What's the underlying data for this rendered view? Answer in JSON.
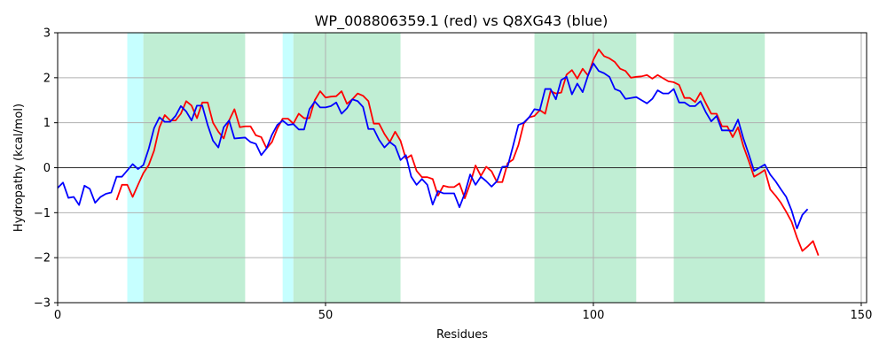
{
  "chart_data": {
    "type": "line",
    "title": "WP_008806359.1 (red) vs Q8XG43 (blue)",
    "xlabel": "Residues",
    "ylabel": "Hydropathy (kcal/mol)",
    "xlim": [
      0,
      151
    ],
    "ylim": [
      -3,
      3
    ],
    "xticks": [
      0,
      50,
      100,
      150
    ],
    "yticks": [
      -3,
      -2,
      -1,
      0,
      1,
      2,
      3
    ],
    "grid": true,
    "zero_line": true,
    "regions": [
      {
        "start": 13,
        "end": 16,
        "color": "#c6ffff"
      },
      {
        "start": 16,
        "end": 35,
        "color": "#c0eed4"
      },
      {
        "start": 42,
        "end": 44,
        "color": "#c6ffff"
      },
      {
        "start": 44,
        "end": 64,
        "color": "#c0eed4"
      },
      {
        "start": 89,
        "end": 108,
        "color": "#c0eed4"
      },
      {
        "start": 115,
        "end": 132,
        "color": "#c0eed4"
      }
    ],
    "series": [
      {
        "color": "#ff0000",
        "x_start": 11,
        "values": [
          -0.72,
          -0.38,
          -0.38,
          -0.65,
          -0.38,
          -0.12,
          0.06,
          0.38,
          0.9,
          1.17,
          1.05,
          1.05,
          1.2,
          1.48,
          1.38,
          1.1,
          1.45,
          1.45,
          1.0,
          0.8,
          0.65,
          1.05,
          1.3,
          0.9,
          0.92,
          0.92,
          0.72,
          0.68,
          0.43,
          0.57,
          0.87,
          1.09,
          1.09,
          0.98,
          1.2,
          1.1,
          1.1,
          1.5,
          1.7,
          1.56,
          1.58,
          1.59,
          1.7,
          1.42,
          1.52,
          1.65,
          1.6,
          1.48,
          0.98,
          0.98,
          0.75,
          0.57,
          0.8,
          0.6,
          0.2,
          0.28,
          -0.07,
          -0.21,
          -0.21,
          -0.25,
          -0.62,
          -0.4,
          -0.43,
          -0.43,
          -0.35,
          -0.68,
          -0.35,
          0.05,
          -0.18,
          0.02,
          -0.08,
          -0.32,
          -0.32,
          0.1,
          0.18,
          0.5,
          0.98,
          1.12,
          1.15,
          1.28,
          1.2,
          1.7,
          1.65,
          1.67,
          2.07,
          2.17,
          1.98,
          2.2,
          2.05,
          2.4,
          2.63,
          2.48,
          2.43,
          2.35,
          2.2,
          2.15,
          2.0,
          2.02,
          2.03,
          2.06,
          1.98,
          2.06,
          1.99,
          1.92,
          1.9,
          1.84,
          1.55,
          1.55,
          1.46,
          1.67,
          1.43,
          1.2,
          1.2,
          0.92,
          0.92,
          0.68,
          0.9,
          0.48,
          0.15,
          -0.2,
          -0.13,
          -0.05,
          -0.48,
          -0.62,
          -0.78,
          -0.98,
          -1.2,
          -1.55,
          -1.85,
          -1.75,
          -1.63,
          -1.95
        ]
      },
      {
        "color": "#0000ff",
        "x_start": 0,
        "values": [
          -0.45,
          -0.33,
          -0.67,
          -0.65,
          -0.83,
          -0.4,
          -0.47,
          -0.78,
          -0.65,
          -0.58,
          -0.55,
          -0.2,
          -0.2,
          -0.06,
          0.08,
          -0.03,
          0.06,
          0.42,
          0.88,
          1.12,
          1.02,
          1.02,
          1.15,
          1.37,
          1.25,
          1.05,
          1.38,
          1.38,
          0.95,
          0.6,
          0.45,
          0.9,
          1.05,
          0.65,
          0.66,
          0.67,
          0.57,
          0.53,
          0.28,
          0.43,
          0.73,
          0.95,
          1.05,
          0.95,
          0.97,
          0.85,
          0.85,
          1.3,
          1.47,
          1.34,
          1.34,
          1.37,
          1.45,
          1.2,
          1.32,
          1.52,
          1.48,
          1.35,
          0.86,
          0.86,
          0.62,
          0.45,
          0.57,
          0.48,
          0.17,
          0.28,
          -0.2,
          -0.38,
          -0.25,
          -0.38,
          -0.82,
          -0.52,
          -0.57,
          -0.57,
          -0.57,
          -0.88,
          -0.57,
          -0.15,
          -0.38,
          -0.2,
          -0.3,
          -0.42,
          -0.3,
          0.02,
          0.03,
          0.48,
          0.95,
          1.0,
          1.12,
          1.3,
          1.28,
          1.75,
          1.75,
          1.52,
          1.95,
          2.02,
          1.63,
          1.87,
          1.68,
          2.05,
          2.32,
          2.15,
          2.1,
          2.02,
          1.75,
          1.7,
          1.53,
          1.55,
          1.57,
          1.5,
          1.43,
          1.53,
          1.72,
          1.65,
          1.65,
          1.75,
          1.45,
          1.45,
          1.37,
          1.37,
          1.48,
          1.23,
          1.03,
          1.15,
          0.83,
          0.83,
          0.82,
          1.07,
          0.65,
          0.3,
          -0.07,
          0.0,
          0.07,
          -0.15,
          -0.3,
          -0.48,
          -0.65,
          -0.95,
          -1.35,
          -1.05,
          -0.92
        ]
      }
    ]
  }
}
